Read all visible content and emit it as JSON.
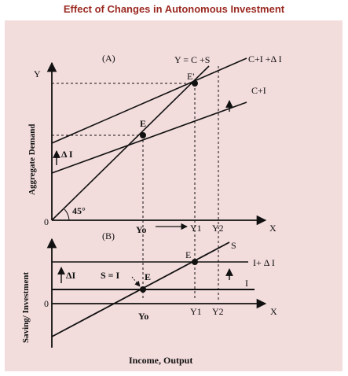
{
  "title": "Effect of Changes in Autonomous Investment",
  "colors": {
    "title": "#9b2a22",
    "panel": "#f3dcdc",
    "ink": "#111111"
  },
  "top_panel": {
    "label": "(A)",
    "y_axis": "Y",
    "x_axis": "X",
    "origin": "0",
    "angle": "45°",
    "ylabel": "Aggregate Demand",
    "line_45": "Y = C +S",
    "line_shifted": "C+I +Δ I",
    "line_base": "C+I",
    "point_E": "E",
    "point_E_prime": "E'",
    "delta_I": "Δ I",
    "x_ticks": [
      "Yo",
      "Y1",
      "Y2"
    ]
  },
  "bottom_panel": {
    "label": "(B)",
    "x_axis": "X",
    "origin": "0",
    "ylabel": "Saving/ Investment",
    "line_S": "S",
    "line_I_shift": "I+ Δ I",
    "line_I": "I",
    "point_E": "E",
    "point_E_prime": "E",
    "delta_I": "ΔI",
    "equilibrium": "S = I",
    "x_ticks": [
      "Yo",
      "Y1",
      "Y2"
    ]
  },
  "xlabel": "Income, Output"
}
